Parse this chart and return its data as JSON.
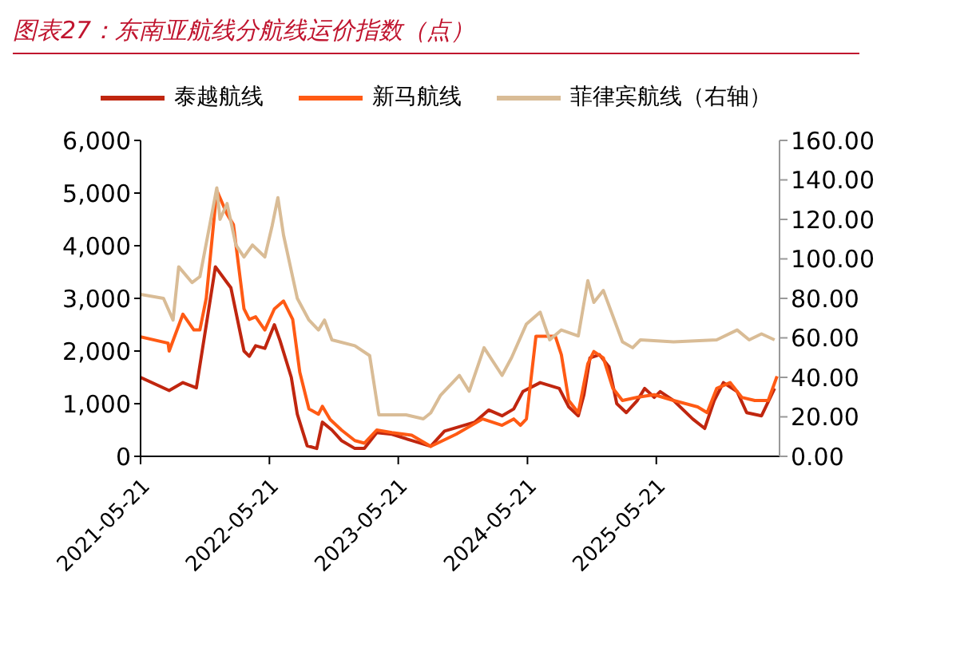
{
  "chart_data": {
    "type": "line",
    "title": "图表27：东南亚航线分航线运价指数（点）",
    "legend": "top",
    "grid": false,
    "marker": "none",
    "line_style": "solid",
    "xlim": [
      "2021-05-21",
      "2026-05-05"
    ],
    "xticks": [
      "2021-05-21",
      "2022-05-21",
      "2023-05-21",
      "2024-05-21",
      "2025-05-21"
    ],
    "ylim": [
      0,
      6000
    ],
    "yticks": [
      {
        "value": 0,
        "label": "0"
      },
      {
        "value": 1000,
        "label": "1,000"
      },
      {
        "value": 2000,
        "label": "2,000"
      },
      {
        "value": 3000,
        "label": "3,000"
      },
      {
        "value": 4000,
        "label": "4,000"
      },
      {
        "value": 5000,
        "label": "5,000"
      },
      {
        "value": 6000,
        "label": "6,000"
      }
    ],
    "y2lim": [
      0,
      160
    ],
    "y2ticks": [
      {
        "value": 0,
        "label": "0.00"
      },
      {
        "value": 20,
        "label": "20.00"
      },
      {
        "value": 40,
        "label": "40.00"
      },
      {
        "value": 60,
        "label": "60.00"
      },
      {
        "value": 80,
        "label": "80.00"
      },
      {
        "value": 100,
        "label": "100.00"
      },
      {
        "value": 120,
        "label": "120.00"
      },
      {
        "value": 140,
        "label": "140.00"
      },
      {
        "value": 160,
        "label": "160.00"
      }
    ],
    "series": [
      {
        "name": "泰越航线",
        "color": "#c0260f",
        "x": [
          "2021-05-21",
          "2021-08-10",
          "2021-09-18",
          "2021-10-26",
          "2021-12-19",
          "2022-01-21",
          "2022-02-01",
          "2022-03-10",
          "2022-03-25",
          "2022-04-12",
          "2022-05-08",
          "2022-06-04",
          "2022-06-20",
          "2022-07-22",
          "2022-08-08",
          "2022-09-05",
          "2022-10-02",
          "2022-10-18",
          "2022-11-14",
          "2022-12-11",
          "2023-01-18",
          "2023-02-14",
          "2023-03-21",
          "2023-05-03",
          "2023-06-28",
          "2023-08-21",
          "2023-09-29",
          "2023-12-24",
          "2024-02-01",
          "2024-03-10",
          "2024-04-12",
          "2024-05-08",
          "2024-06-26",
          "2024-08-19",
          "2024-09-15",
          "2024-10-12",
          "2024-10-28",
          "2024-11-14",
          "2024-12-11",
          "2025-01-07",
          "2025-01-29",
          "2025-02-25",
          "2025-03-28",
          "2025-04-18",
          "2025-05-15",
          "2025-06-01",
          "2025-07-09",
          "2025-09-01",
          "2025-10-05",
          "2025-11-01",
          "2025-11-27",
          "2026-01-05",
          "2026-02-01",
          "2026-03-15",
          "2026-04-21"
        ],
        "values": [
          1500,
          1250,
          1400,
          1300,
          3600,
          3300,
          3200,
          2000,
          1900,
          2100,
          2050,
          2500,
          2200,
          1500,
          800,
          200,
          150,
          650,
          500,
          300,
          150,
          150,
          450,
          420,
          300,
          190,
          480,
          650,
          880,
          770,
          900,
          1230,
          1400,
          1290,
          940,
          770,
          1170,
          1870,
          1930,
          1700,
          1000,
          830,
          1060,
          1290,
          1120,
          1230,
          1060,
          710,
          530,
          1060,
          1400,
          1230,
          830,
          770,
          1290
        ]
      },
      {
        "name": "新马航线",
        "color": "#ff5a14",
        "x": [
          "2021-05-21",
          "2021-08-07",
          "2021-08-10",
          "2021-09-18",
          "2021-10-19",
          "2021-11-05",
          "2021-11-23",
          "2021-12-23",
          "2022-01-21",
          "2022-02-08",
          "2022-03-10",
          "2022-03-25",
          "2022-04-12",
          "2022-05-08",
          "2022-06-04",
          "2022-06-30",
          "2022-07-26",
          "2022-08-15",
          "2022-09-10",
          "2022-10-07",
          "2022-10-18",
          "2022-11-09",
          "2022-12-11",
          "2023-01-18",
          "2023-02-14",
          "2023-03-21",
          "2023-05-03",
          "2023-06-28",
          "2023-08-21",
          "2023-11-01",
          "2024-01-15",
          "2024-03-10",
          "2024-04-12",
          "2024-05-01",
          "2024-05-18",
          "2024-06-14",
          "2024-08-08",
          "2024-08-25",
          "2024-09-15",
          "2024-10-12",
          "2024-11-08",
          "2024-11-25",
          "2024-12-22",
          "2025-01-18",
          "2025-02-14",
          "2025-03-28",
          "2025-05-15",
          "2025-07-09",
          "2025-09-15",
          "2025-10-12",
          "2025-11-08",
          "2025-12-16",
          "2026-01-18",
          "2026-02-24",
          "2026-04-03",
          "2026-04-28"
        ],
        "values": [
          2270,
          2150,
          2000,
          2700,
          2400,
          2400,
          3000,
          5050,
          4600,
          4400,
          2800,
          2600,
          2650,
          2400,
          2800,
          2950,
          2600,
          1600,
          900,
          800,
          950,
          700,
          500,
          300,
          250,
          500,
          450,
          400,
          190,
          420,
          710,
          590,
          710,
          590,
          710,
          2280,
          2280,
          1930,
          1060,
          830,
          1760,
          1990,
          1870,
          1290,
          1060,
          1120,
          1170,
          1060,
          940,
          830,
          1290,
          1400,
          1120,
          1060,
          1060,
          1520
        ]
      },
      {
        "name": "菲律宾航线（右轴）",
        "color": "#d9bc96",
        "axis": "y2",
        "x": [
          "2021-05-21",
          "2021-07-25",
          "2021-08-21",
          "2021-09-06",
          "2021-10-14",
          "2021-11-05",
          "2021-11-19",
          "2021-12-23",
          "2022-01-01",
          "2022-01-21",
          "2022-02-15",
          "2022-03-10",
          "2022-04-03",
          "2022-05-08",
          "2022-05-29",
          "2022-06-14",
          "2022-06-30",
          "2022-08-08",
          "2022-09-10",
          "2022-10-07",
          "2022-10-24",
          "2022-11-14",
          "2023-01-18",
          "2023-03-01",
          "2023-03-27",
          "2023-06-12",
          "2023-07-31",
          "2023-08-21",
          "2023-09-18",
          "2023-11-10",
          "2023-12-08",
          "2024-01-19",
          "2024-03-10",
          "2024-04-06",
          "2024-05-18",
          "2024-06-26",
          "2024-07-23",
          "2024-08-25",
          "2024-10-12",
          "2024-11-08",
          "2024-11-25",
          "2024-12-22",
          "2025-02-14",
          "2025-03-15",
          "2025-04-06",
          "2025-07-09",
          "2025-11-08",
          "2026-01-05",
          "2026-02-08",
          "2026-03-15",
          "2026-04-21"
        ],
        "values": [
          82,
          80,
          69,
          96,
          88,
          91,
          104,
          136,
          120,
          128,
          107,
          101,
          107,
          101,
          117,
          131,
          112,
          80,
          69,
          64,
          69,
          59,
          56,
          51,
          21,
          21,
          19,
          22,
          31,
          41,
          33,
          55,
          41,
          50,
          67,
          73,
          59,
          64,
          61,
          89,
          78,
          84,
          58,
          55,
          59,
          58,
          59,
          64,
          59,
          62,
          59
        ]
      }
    ]
  }
}
